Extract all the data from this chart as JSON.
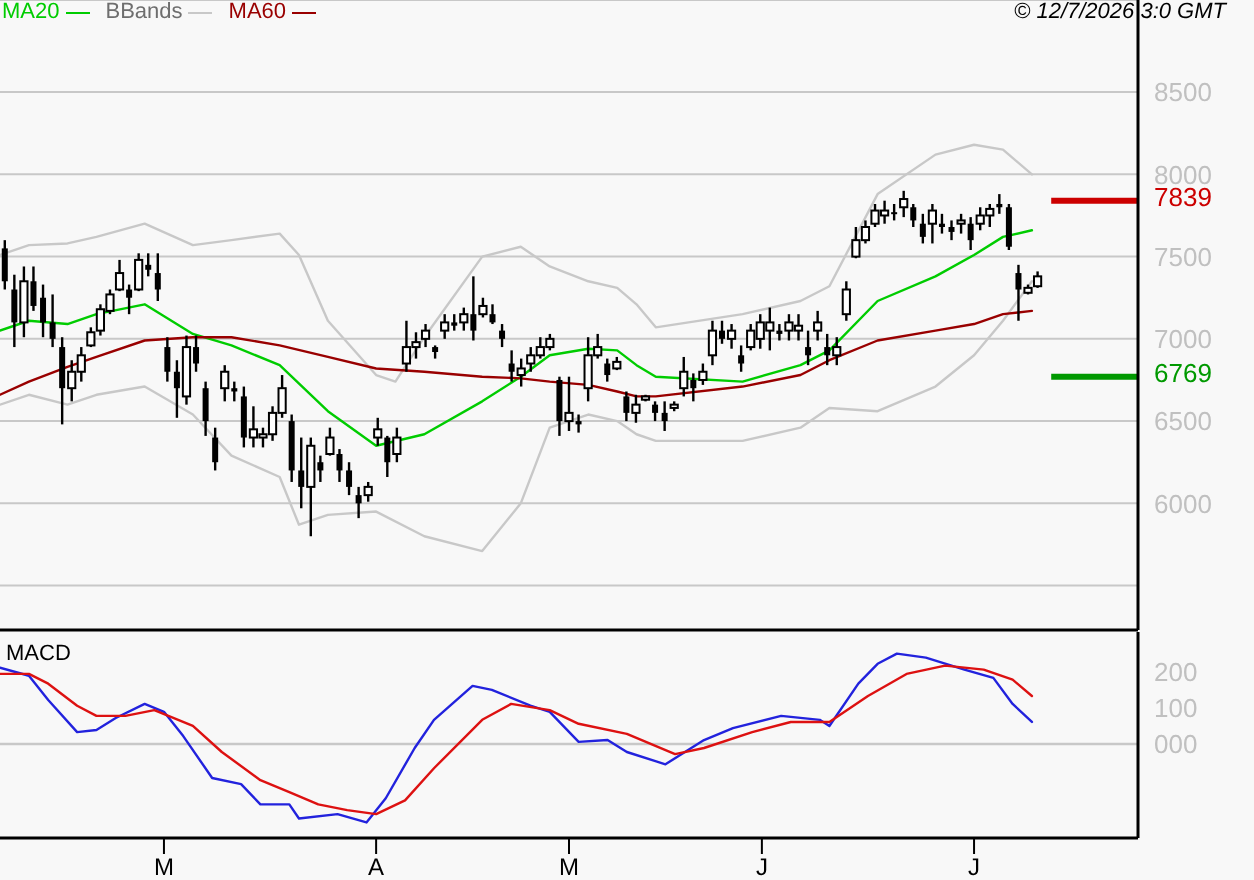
{
  "chart_data": [
    {
      "type": "candlestick",
      "color": "#000000",
      "categories": [
        null,
        null,
        null,
        null,
        null,
        null,
        null,
        null,
        null,
        null,
        null,
        null,
        null,
        null,
        null,
        null,
        null,
        null,
        null,
        null,
        null,
        null,
        null,
        null,
        null,
        null,
        null,
        null,
        null,
        null,
        null,
        null,
        null,
        null,
        null,
        null,
        null,
        null,
        null,
        null,
        null,
        null,
        null,
        null,
        null,
        null,
        null,
        null,
        null,
        null,
        null,
        null,
        null,
        null,
        null,
        null,
        null,
        null,
        null,
        null,
        null,
        null,
        null,
        null,
        null,
        null,
        null,
        null,
        null,
        null,
        null,
        null,
        null,
        null,
        null,
        null,
        null,
        null,
        null,
        null,
        null,
        null,
        null,
        null,
        null,
        null,
        null,
        null,
        null,
        null,
        null,
        null,
        null,
        null,
        null,
        null,
        null,
        null,
        null,
        null,
        null,
        null,
        null,
        null,
        null,
        null,
        null,
        null,
        null,
        null,
        null,
        null,
        null,
        null,
        null,
        null,
        null,
        null,
        null
      ],
      "ohlc": [
        [
          7550,
          7600,
          7300,
          7350
        ],
        [
          7300,
          7390,
          6950,
          7100
        ],
        [
          7100,
          7440,
          7010,
          7350
        ],
        [
          7350,
          7440,
          7170,
          7200
        ],
        [
          7250,
          7330,
          7010,
          7100
        ],
        [
          7100,
          7270,
          6950,
          7000
        ],
        [
          6950,
          7010,
          6480,
          6700
        ],
        [
          6700,
          6870,
          6620,
          6800
        ],
        [
          6800,
          6950,
          6740,
          6900
        ],
        [
          6960,
          7070,
          6950,
          7040
        ],
        [
          7050,
          7210,
          7020,
          7180
        ],
        [
          7170,
          7300,
          7150,
          7270
        ],
        [
          7300,
          7480,
          7290,
          7400
        ],
        [
          7300,
          7330,
          7150,
          7250
        ],
        [
          7300,
          7520,
          7290,
          7480
        ],
        [
          7450,
          7520,
          7380,
          7420
        ],
        [
          7400,
          7520,
          7230,
          7300
        ],
        [
          6950,
          7010,
          6740,
          6800
        ],
        [
          6800,
          6870,
          6520,
          6700
        ],
        [
          6650,
          7020,
          6600,
          6950
        ],
        [
          6950,
          7020,
          6800,
          6850
        ],
        [
          6700,
          6740,
          6410,
          6500
        ],
        [
          6400,
          6460,
          6200,
          6250
        ],
        [
          6700,
          6840,
          6620,
          6800
        ],
        [
          6700,
          6740,
          6620,
          6680
        ],
        [
          6650,
          6710,
          6340,
          6400
        ],
        [
          6400,
          6590,
          6340,
          6450
        ],
        [
          6400,
          6460,
          6340,
          6420
        ],
        [
          6420,
          6590,
          6380,
          6550
        ],
        [
          6550,
          6780,
          6520,
          6700
        ],
        [
          6500,
          6540,
          6130,
          6200
        ],
        [
          6200,
          6400,
          5970,
          6100
        ],
        [
          6100,
          6400,
          5800,
          6350
        ],
        [
          6250,
          6290,
          6130,
          6200
        ],
        [
          6300,
          6460,
          6290,
          6400
        ],
        [
          6300,
          6330,
          6130,
          6200
        ],
        [
          6200,
          6250,
          6050,
          6100
        ],
        [
          6050,
          6100,
          5910,
          6000
        ],
        [
          6050,
          6130,
          6010,
          6100
        ],
        [
          6400,
          6520,
          6350,
          6450
        ],
        [
          6400,
          6410,
          6160,
          6250
        ],
        [
          6300,
          6460,
          6250,
          6400
        ],
        [
          6850,
          7110,
          6800,
          6950
        ],
        [
          6950,
          7040,
          6880,
          6980
        ],
        [
          7000,
          7090,
          6950,
          7050
        ],
        [
          6950,
          6960,
          6880,
          6920
        ],
        [
          7050,
          7150,
          7000,
          7100
        ],
        [
          7100,
          7150,
          7050,
          7080
        ],
        [
          7100,
          7190,
          7050,
          7150
        ],
        [
          7150,
          7380,
          6990,
          7050
        ],
        [
          7150,
          7250,
          7130,
          7200
        ],
        [
          7150,
          7210,
          7090,
          7100
        ],
        [
          7050,
          7090,
          6950,
          7000
        ],
        [
          6850,
          6930,
          6740,
          6800
        ],
        [
          6780,
          6880,
          6710,
          6820
        ],
        [
          6850,
          6950,
          6800,
          6900
        ],
        [
          6900,
          7010,
          6880,
          6950
        ],
        [
          6950,
          7030,
          6930,
          7000
        ],
        [
          6750,
          6770,
          6410,
          6500
        ],
        [
          6500,
          6770,
          6440,
          6550
        ],
        [
          6500,
          6540,
          6430,
          6480
        ],
        [
          6700,
          7010,
          6620,
          6900
        ],
        [
          6900,
          7030,
          6880,
          6950
        ],
        [
          6850,
          6880,
          6740,
          6780
        ],
        [
          6820,
          6890,
          6810,
          6860
        ],
        [
          6650,
          6680,
          6500,
          6550
        ],
        [
          6550,
          6660,
          6490,
          6600
        ],
        [
          6630,
          6660,
          6620,
          6650
        ],
        [
          6600,
          6620,
          6500,
          6550
        ],
        [
          6550,
          6620,
          6440,
          6500
        ],
        [
          6580,
          6620,
          6560,
          6600
        ],
        [
          6700,
          6890,
          6650,
          6800
        ],
        [
          6750,
          6790,
          6620,
          6700
        ],
        [
          6750,
          6850,
          6720,
          6800
        ],
        [
          6900,
          7110,
          6840,
          7050
        ],
        [
          7050,
          7110,
          6970,
          7000
        ],
        [
          7000,
          7090,
          6940,
          7050
        ],
        [
          6900,
          6960,
          6800,
          6850
        ],
        [
          6950,
          7090,
          6930,
          7050
        ],
        [
          7000,
          7150,
          6940,
          7100
        ],
        [
          7050,
          7190,
          6930,
          7100
        ],
        [
          7050,
          7090,
          6990,
          7030
        ],
        [
          7050,
          7150,
          6990,
          7100
        ],
        [
          7050,
          7150,
          6990,
          7080
        ],
        [
          6950,
          7050,
          6840,
          6900
        ],
        [
          7050,
          7170,
          6990,
          7100
        ],
        [
          6950,
          7030,
          6840,
          6900
        ],
        [
          6900,
          7010,
          6840,
          6950
        ],
        [
          7150,
          7350,
          7110,
          7300
        ],
        [
          7500,
          7680,
          7490,
          7600
        ],
        [
          7600,
          7720,
          7580,
          7680
        ],
        [
          7700,
          7820,
          7680,
          7780
        ],
        [
          7750,
          7840,
          7700,
          7780
        ],
        [
          7770,
          7820,
          7720,
          7760
        ],
        [
          7800,
          7900,
          7740,
          7850
        ],
        [
          7800,
          7820,
          7680,
          7720
        ],
        [
          7700,
          7760,
          7580,
          7620
        ],
        [
          7700,
          7820,
          7580,
          7780
        ],
        [
          7700,
          7760,
          7640,
          7680
        ],
        [
          7680,
          7720,
          7600,
          7650
        ],
        [
          7700,
          7760,
          7640,
          7720
        ],
        [
          7700,
          7740,
          7540,
          7600
        ],
        [
          7700,
          7800,
          7660,
          7750
        ],
        [
          7750,
          7820,
          7680,
          7790
        ],
        [
          7820,
          7880,
          7760,
          7800
        ],
        [
          7800,
          7820,
          7540,
          7560
        ],
        [
          7400,
          7450,
          7110,
          7300
        ],
        [
          7280,
          7330,
          7270,
          7310
        ],
        [
          7320,
          7410,
          7310,
          7380
        ],
        null,
        null,
        null,
        null,
        null,
        null,
        null,
        null,
        null,
        null
      ],
      "series": [
        {
          "type": "line",
          "name": "MA20",
          "color": "#00cc00",
          "values": [
            7050,
            null,
            null,
            7110,
            null,
            null,
            null,
            7090,
            null,
            null,
            7150,
            null,
            null,
            null,
            null,
            7210,
            null,
            null,
            null,
            null,
            7030,
            null,
            null,
            null,
            6960,
            null,
            null,
            null,
            null,
            6840,
            null,
            null,
            null,
            null,
            6560,
            null,
            null,
            null,
            null,
            6350,
            null,
            null,
            null,
            null,
            6420,
            null,
            null,
            null,
            null,
            null,
            6620,
            null,
            null,
            null,
            6770,
            null,
            null,
            6900,
            null,
            null,
            null,
            6940,
            null,
            null,
            6930,
            null,
            6840,
            null,
            6770,
            null,
            null,
            null,
            null,
            null,
            null,
            null,
            null,
            6740,
            null,
            null,
            null,
            null,
            null,
            6840,
            null,
            null,
            6930,
            null,
            null,
            null,
            null,
            7230,
            null,
            null,
            null,
            null,
            null,
            7380,
            null,
            null,
            null,
            7510,
            null,
            null,
            7620,
            null,
            null,
            7660,
            null,
            null,
            null,
            null,
            null,
            null,
            null,
            null,
            null,
            null,
            null
          ]
        },
        {
          "type": "line",
          "name": "BBands",
          "color": "#c8c8c8",
          "values": [
            7510,
            null,
            null,
            7570,
            null,
            null,
            null,
            7580,
            null,
            null,
            7620,
            null,
            null,
            null,
            null,
            7700,
            null,
            null,
            null,
            null,
            7570,
            null,
            null,
            null,
            7600,
            null,
            null,
            null,
            null,
            7640,
            null,
            7510,
            null,
            null,
            7110,
            null,
            null,
            null,
            null,
            6780,
            null,
            6740,
            null,
            null,
            7010,
            null,
            null,
            null,
            null,
            null,
            7500,
            null,
            null,
            null,
            7560,
            null,
            null,
            7440,
            null,
            null,
            null,
            7350,
            null,
            null,
            7310,
            null,
            7210,
            null,
            7070,
            null,
            null,
            null,
            null,
            null,
            null,
            null,
            null,
            7150,
            null,
            null,
            null,
            null,
            null,
            7230,
            null,
            null,
            7320,
            null,
            null,
            null,
            null,
            7880,
            null,
            null,
            null,
            null,
            null,
            8120,
            null,
            null,
            null,
            8180,
            null,
            null,
            8150,
            null,
            null,
            8000,
            null,
            null,
            null,
            null,
            null,
            null,
            null,
            null,
            null,
            null,
            null
          ]
        },
        {
          "type": "line",
          "color": "#c8c8c8",
          "values": [
            6600,
            null,
            null,
            6660,
            null,
            null,
            null,
            6600,
            null,
            null,
            6660,
            null,
            null,
            null,
            null,
            6710,
            null,
            null,
            null,
            null,
            6540,
            null,
            null,
            null,
            6290,
            null,
            null,
            null,
            null,
            6160,
            null,
            5870,
            null,
            null,
            5930,
            null,
            null,
            null,
            null,
            5950,
            null,
            null,
            null,
            null,
            5800,
            null,
            null,
            null,
            null,
            null,
            5710,
            null,
            null,
            null,
            6000,
            null,
            null,
            6460,
            null,
            null,
            null,
            6540,
            null,
            null,
            6500,
            null,
            6420,
            null,
            6380,
            null,
            null,
            null,
            null,
            null,
            null,
            null,
            null,
            6380,
            null,
            null,
            null,
            null,
            null,
            6460,
            null,
            null,
            6580,
            null,
            null,
            null,
            null,
            6560,
            null,
            null,
            null,
            null,
            null,
            6710,
            null,
            null,
            null,
            6900,
            null,
            null,
            7110,
            null,
            null,
            7350,
            null,
            null,
            null,
            null,
            null,
            null,
            null,
            null,
            null,
            null,
            null
          ]
        },
        {
          "type": "line",
          "name": "MA60",
          "color": "#990000",
          "values": [
            6660,
            null,
            null,
            6740,
            null,
            null,
            null,
            6830,
            null,
            null,
            6890,
            null,
            null,
            null,
            null,
            6990,
            null,
            null,
            null,
            null,
            7010,
            null,
            null,
            null,
            7010,
            null,
            null,
            null,
            null,
            6960,
            null,
            null,
            null,
            null,
            6890,
            null,
            null,
            null,
            null,
            6820,
            null,
            null,
            null,
            null,
            6800,
            null,
            null,
            null,
            null,
            null,
            6770,
            null,
            null,
            null,
            6760,
            null,
            null,
            6740,
            null,
            null,
            null,
            6720,
            null,
            null,
            6680,
            null,
            6650,
            null,
            6650,
            null,
            null,
            null,
            null,
            null,
            null,
            null,
            null,
            6710,
            null,
            null,
            null,
            null,
            null,
            6780,
            null,
            null,
            6870,
            null,
            null,
            null,
            null,
            6990,
            null,
            null,
            null,
            null,
            null,
            7050,
            null,
            null,
            null,
            7090,
            null,
            null,
            7150,
            null,
            null,
            7170,
            null,
            null,
            null,
            null,
            null,
            null,
            null,
            null,
            null,
            null,
            null
          ]
        }
      ],
      "ylim": [
        5230,
        9060
      ],
      "yticks": [
        {
          "value": 5500,
          "label": null
        },
        6000,
        6500,
        7000,
        7500,
        8000,
        8500
      ],
      "tick_labels": "y",
      "grid": "y",
      "legend": "top left",
      "ref_lines": [
        {
          "axis": "y",
          "value": 7839,
          "label": "7839",
          "color": "#cc0000"
        },
        {
          "axis": "y",
          "value": 6769,
          "label": "6769",
          "color": "#009900"
        }
      ],
      "annotations": [
        "© 12/7/2026 3:0 GMT"
      ]
    },
    {
      "type": "line",
      "title": "MACD",
      "categories": [
        null,
        null,
        null,
        null,
        null,
        null,
        null,
        null,
        null,
        null,
        null,
        null,
        null,
        null,
        null,
        null,
        null,
        "M",
        null,
        null,
        null,
        null,
        null,
        null,
        null,
        null,
        null,
        null,
        null,
        null,
        null,
        null,
        null,
        null,
        null,
        null,
        null,
        null,
        null,
        "A",
        null,
        null,
        null,
        null,
        null,
        null,
        null,
        null,
        null,
        null,
        null,
        null,
        null,
        null,
        null,
        null,
        null,
        null,
        null,
        "M",
        null,
        null,
        null,
        null,
        null,
        null,
        null,
        null,
        null,
        null,
        null,
        null,
        null,
        null,
        null,
        null,
        null,
        null,
        null,
        "J",
        null,
        null,
        null,
        null,
        null,
        null,
        null,
        null,
        null,
        null,
        null,
        null,
        null,
        null,
        null,
        null,
        null,
        null,
        null,
        null,
        null,
        "J",
        null,
        null,
        null,
        null,
        null,
        null,
        null,
        null,
        null,
        null,
        null,
        null,
        null,
        null,
        null,
        null,
        null
      ],
      "series": [
        {
          "color": "#2222dd",
          "values": [
            211,
            null,
            null,
            189,
            null,
            122,
            null,
            null,
            33,
            null,
            39,
            null,
            72,
            null,
            null,
            111,
            null,
            89,
            null,
            22,
            null,
            null,
            -94,
            null,
            null,
            -111,
            null,
            -167,
            null,
            null,
            -167,
            -206,
            null,
            null,
            null,
            -194,
            null,
            null,
            -217,
            null,
            -150,
            null,
            null,
            -11,
            null,
            67,
            null,
            null,
            null,
            161,
            null,
            150,
            null,
            null,
            null,
            106,
            null,
            89,
            null,
            null,
            6,
            null,
            null,
            11,
            null,
            -22,
            null,
            null,
            null,
            -56,
            null,
            null,
            null,
            11,
            null,
            null,
            44,
            null,
            null,
            null,
            null,
            78,
            null,
            null,
            null,
            67,
            50,
            null,
            null,
            167,
            null,
            222,
            null,
            250,
            null,
            null,
            239,
            null,
            null,
            null,
            206,
            null,
            null,
            183,
            null,
            111,
            null,
            61,
            null,
            null,
            null,
            null,
            null,
            null,
            null,
            null,
            null,
            null,
            null
          ]
        },
        {
          "color": "#dd1111",
          "values": [
            194,
            null,
            null,
            194,
            null,
            167,
            null,
            null,
            106,
            null,
            78,
            null,
            null,
            78,
            null,
            null,
            94,
            null,
            null,
            null,
            50,
            null,
            null,
            -22,
            null,
            null,
            null,
            -100,
            null,
            null,
            -133,
            null,
            null,
            -167,
            null,
            null,
            -183,
            null,
            null,
            -194,
            null,
            null,
            -156,
            null,
            null,
            -67,
            null,
            null,
            null,
            null,
            67,
            null,
            null,
            111,
            null,
            null,
            null,
            94,
            null,
            null,
            56,
            null,
            null,
            null,
            null,
            28,
            null,
            null,
            null,
            null,
            -28,
            null,
            null,
            -11,
            null,
            null,
            null,
            null,
            33,
            null,
            null,
            null,
            61,
            null,
            null,
            null,
            61,
            null,
            null,
            null,
            133,
            null,
            null,
            null,
            194,
            null,
            null,
            null,
            217,
            null,
            null,
            null,
            206,
            null,
            null,
            178,
            null,
            133,
            null,
            null,
            null,
            null,
            null,
            null,
            null,
            null,
            null,
            null,
            null
          ]
        }
      ],
      "ylim": [
        -260,
        310
      ],
      "yticks": [
        {
          "value": 0,
          "label": "000"
        },
        100,
        200
      ],
      "ref_lines": [
        {
          "axis": "y",
          "value": 0,
          "color": "#c8c8c8"
        }
      ]
    }
  ]
}
